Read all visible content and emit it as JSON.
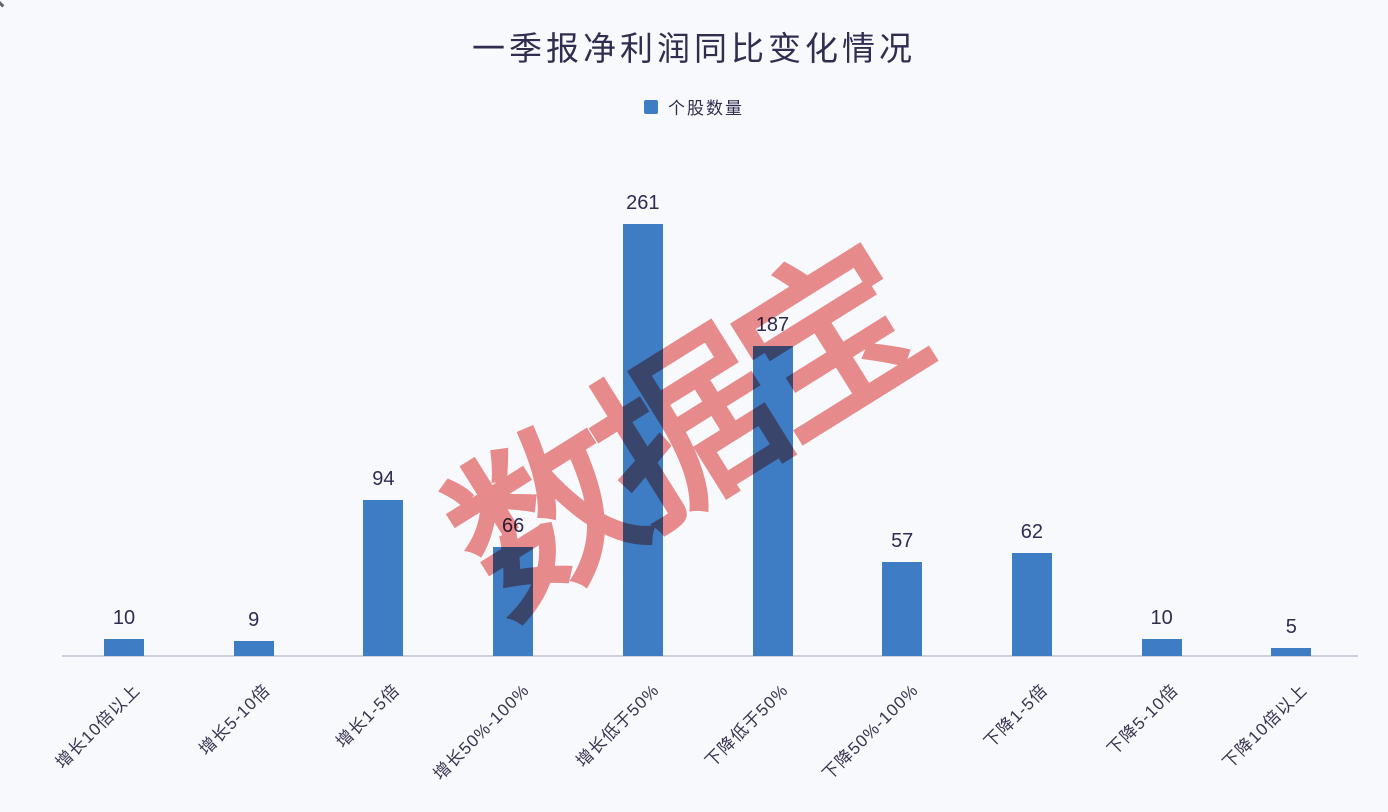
{
  "page": {
    "background_color": "#f7f9fc"
  },
  "chart_data": {
    "type": "bar",
    "title": "一季报净利润同比变化情况",
    "legend_entries": [
      {
        "label": "个股数量",
        "color": "#3e7cc4"
      }
    ],
    "legend_position": "top",
    "series_name": "个股数量",
    "categories": [
      "增长10倍以上",
      "增长5-10倍",
      "增长1-5倍",
      "增长50%-100%",
      "增长低于50%",
      "下降低于50%",
      "下降50%-100%",
      "下降1-5倍",
      "下降5-10倍",
      "下降10倍以上"
    ],
    "values": [
      10,
      9,
      94,
      66,
      261,
      187,
      57,
      62,
      10,
      5
    ],
    "data_labels_shown": true,
    "xlabel": "",
    "ylabel": "",
    "y_axis_shown": false,
    "grid": false,
    "ylim": [
      0,
      280
    ],
    "bar_color": "#3e7cc4",
    "text_color": "#312b52",
    "axis_line_color": "#ccd1dc",
    "x_tick_rotation_deg": 45
  },
  "watermark": {
    "text": "数据宝",
    "color": "#ee8d8d",
    "rotation_deg": -32
  }
}
